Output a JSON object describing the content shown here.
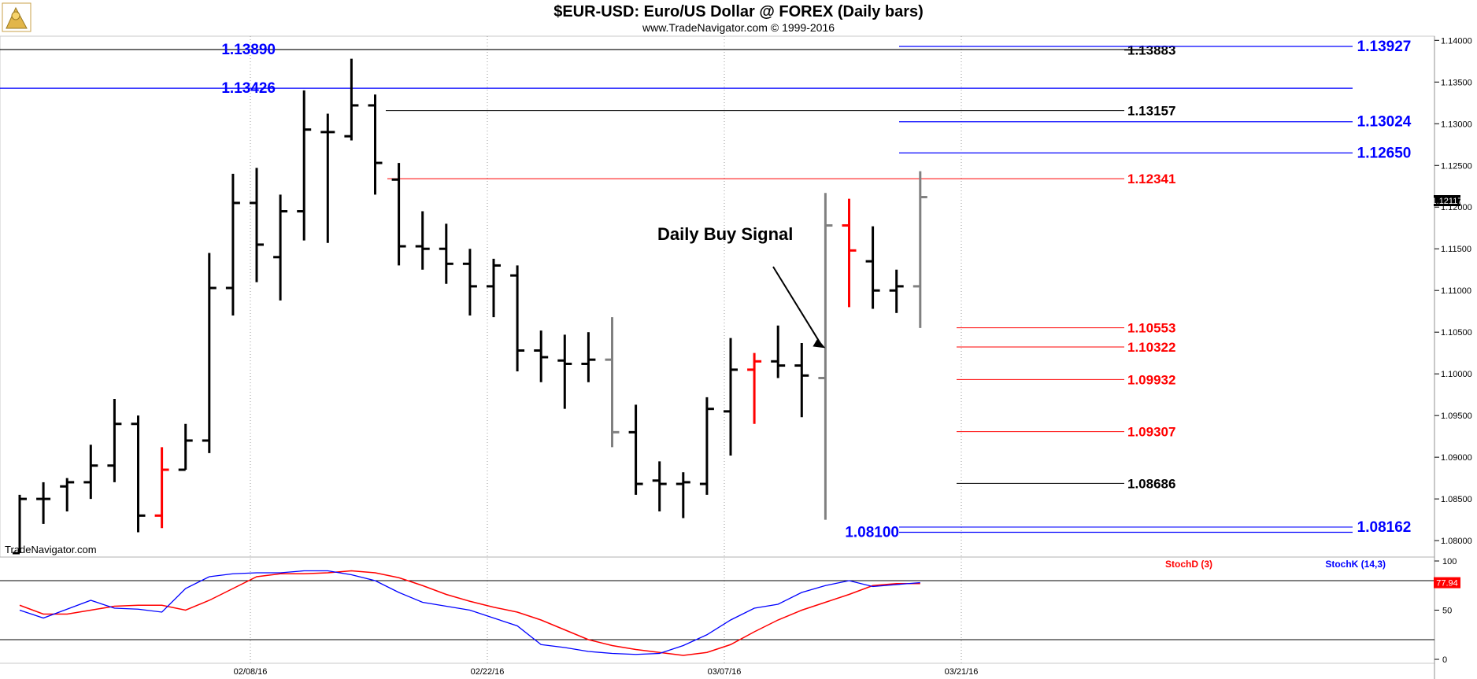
{
  "chart_data": {
    "type": "ohlc",
    "title": "$EUR-USD:  Euro/US Dollar @ FOREX  (Daily bars)",
    "copyright": "www.TradeNavigator.com © 1999-2016",
    "watermark": "TradeNavigator.com",
    "last_price": "1.12117",
    "y_axis": {
      "range": [
        1.0785,
        1.1405
      ],
      "ticks": [
        "1.14000",
        "1.13500",
        "1.13000",
        "1.12500",
        "1.12000",
        "1.11500",
        "1.11000",
        "1.10500",
        "1.10000",
        "1.09500",
        "1.09000",
        "1.08500",
        "1.08000"
      ]
    },
    "x_axis": {
      "labels": [
        {
          "label": "02/08/16",
          "bar": 10
        },
        {
          "label": "02/22/16",
          "bar": 20
        },
        {
          "label": "03/07/16",
          "bar": 30
        },
        {
          "label": "03/21/16",
          "bar": 40
        }
      ]
    },
    "bars": [
      {
        "o": 1.0785,
        "h": 1.0855,
        "l": 1.0785,
        "c": 1.085,
        "color": "#000000"
      },
      {
        "o": 1.085,
        "h": 1.087,
        "l": 1.082,
        "c": 1.085,
        "color": "#000000"
      },
      {
        "o": 1.0865,
        "h": 1.0875,
        "l": 1.0835,
        "c": 1.087,
        "color": "#000000"
      },
      {
        "o": 1.087,
        "h": 1.0915,
        "l": 1.085,
        "c": 1.089,
        "color": "#000000"
      },
      {
        "o": 1.089,
        "h": 1.097,
        "l": 1.087,
        "c": 1.094,
        "color": "#000000"
      },
      {
        "o": 1.094,
        "h": 1.095,
        "l": 1.081,
        "c": 1.083,
        "color": "#000000"
      },
      {
        "o": 1.083,
        "h": 1.0912,
        "l": 1.0815,
        "c": 1.0885,
        "color": "#ff0000"
      },
      {
        "o": 1.0885,
        "h": 1.094,
        "l": 1.0885,
        "c": 1.092,
        "color": "#000000"
      },
      {
        "o": 1.092,
        "h": 1.1145,
        "l": 1.0905,
        "c": 1.1103,
        "color": "#000000"
      },
      {
        "o": 1.1103,
        "h": 1.124,
        "l": 1.107,
        "c": 1.1205,
        "color": "#000000"
      },
      {
        "o": 1.1205,
        "h": 1.1247,
        "l": 1.111,
        "c": 1.1155,
        "color": "#000000"
      },
      {
        "o": 1.114,
        "h": 1.1215,
        "l": 1.1088,
        "c": 1.1195,
        "color": "#000000"
      },
      {
        "o": 1.1195,
        "h": 1.134,
        "l": 1.116,
        "c": 1.1293,
        "color": "#000000"
      },
      {
        "o": 1.129,
        "h": 1.1312,
        "l": 1.1157,
        "c": 1.129,
        "color": "#000000"
      },
      {
        "o": 1.1285,
        "h": 1.1378,
        "l": 1.128,
        "c": 1.1322,
        "color": "#000000"
      },
      {
        "o": 1.1322,
        "h": 1.1335,
        "l": 1.1215,
        "c": 1.1253,
        "color": "#000000"
      },
      {
        "o": 1.1233,
        "h": 1.1253,
        "l": 1.113,
        "c": 1.1153,
        "color": "#000000"
      },
      {
        "o": 1.1153,
        "h": 1.1195,
        "l": 1.1125,
        "c": 1.115,
        "color": "#000000"
      },
      {
        "o": 1.115,
        "h": 1.118,
        "l": 1.1108,
        "c": 1.1132,
        "color": "#000000"
      },
      {
        "o": 1.1132,
        "h": 1.115,
        "l": 1.107,
        "c": 1.1105,
        "color": "#000000"
      },
      {
        "o": 1.1105,
        "h": 1.1138,
        "l": 1.1068,
        "c": 1.113,
        "color": "#000000"
      },
      {
        "o": 1.1118,
        "h": 1.113,
        "l": 1.1003,
        "c": 1.1028,
        "color": "#000000"
      },
      {
        "o": 1.1028,
        "h": 1.1052,
        "l": 1.099,
        "c": 1.102,
        "color": "#000000"
      },
      {
        "o": 1.1016,
        "h": 1.1047,
        "l": 1.0958,
        "c": 1.1012,
        "color": "#000000"
      },
      {
        "o": 1.1012,
        "h": 1.105,
        "l": 1.099,
        "c": 1.1017,
        "color": "#000000"
      },
      {
        "o": 1.1017,
        "h": 1.1068,
        "l": 1.0912,
        "c": 1.093,
        "color": "#808080"
      },
      {
        "o": 1.093,
        "h": 1.0963,
        "l": 1.0855,
        "c": 1.0868,
        "color": "#000000"
      },
      {
        "o": 1.0872,
        "h": 1.0895,
        "l": 1.0835,
        "c": 1.0868,
        "color": "#000000"
      },
      {
        "o": 1.0868,
        "h": 1.0882,
        "l": 1.0827,
        "c": 1.087,
        "color": "#000000"
      },
      {
        "o": 1.0868,
        "h": 1.0972,
        "l": 1.0855,
        "c": 1.0958,
        "color": "#000000"
      },
      {
        "o": 1.0955,
        "h": 1.1043,
        "l": 1.0902,
        "c": 1.1005,
        "color": "#000000"
      },
      {
        "o": 1.1005,
        "h": 1.1025,
        "l": 1.094,
        "c": 1.1015,
        "color": "#ff0000"
      },
      {
        "o": 1.1015,
        "h": 1.1058,
        "l": 1.0995,
        "c": 1.101,
        "color": "#000000"
      },
      {
        "o": 1.101,
        "h": 1.1037,
        "l": 1.0948,
        "c": 1.0998,
        "color": "#000000"
      },
      {
        "o": 1.0995,
        "h": 1.1217,
        "l": 1.0825,
        "c": 1.1178,
        "color": "#808080"
      },
      {
        "o": 1.1178,
        "h": 1.121,
        "l": 1.108,
        "c": 1.1148,
        "color": "#ff0000"
      },
      {
        "o": 1.1135,
        "h": 1.1177,
        "l": 1.1078,
        "c": 1.11,
        "color": "#000000"
      },
      {
        "o": 1.11,
        "h": 1.1125,
        "l": 1.1073,
        "c": 1.1105,
        "color": "#000000"
      },
      {
        "o": 1.1105,
        "h": 1.1243,
        "l": 1.1055,
        "c": 1.1212,
        "color": "#808080"
      }
    ],
    "levels": [
      {
        "label": "1.13890",
        "value": 1.1389,
        "color": "#0000ff",
        "label_side": "left",
        "line_color": "#000000"
      },
      {
        "label": "1.13426",
        "value": 1.13426,
        "color": "#0000ff",
        "label_side": "left",
        "line_color": "#0000ff"
      },
      {
        "label": "1.13883",
        "value": 1.13883,
        "color": "#000000",
        "label_side": "right"
      },
      {
        "label": "1.13927",
        "value": 1.13927,
        "color": "#0000ff",
        "label_side": "far"
      },
      {
        "label": "1.13157",
        "value": 1.13157,
        "color": "#000000",
        "label_side": "right"
      },
      {
        "label": "1.13024",
        "value": 1.13024,
        "color": "#0000ff",
        "label_side": "far"
      },
      {
        "label": "1.12650",
        "value": 1.1265,
        "color": "#0000ff",
        "label_side": "far"
      },
      {
        "label": "1.12341",
        "value": 1.12341,
        "color": "#ff0000",
        "label_side": "right"
      },
      {
        "label": "1.10553",
        "value": 1.10553,
        "color": "#ff0000",
        "label_side": "right"
      },
      {
        "label": "1.10322",
        "value": 1.10322,
        "color": "#ff0000",
        "label_side": "right"
      },
      {
        "label": "1.09932",
        "value": 1.09932,
        "color": "#ff0000",
        "label_side": "right"
      },
      {
        "label": "1.09307",
        "value": 1.09307,
        "color": "#ff0000",
        "label_side": "right"
      },
      {
        "label": "1.08686",
        "value": 1.08686,
        "color": "#000000",
        "label_side": "right"
      },
      {
        "label": "1.08100",
        "value": 1.081,
        "color": "#0000ff",
        "label_side": "mid"
      },
      {
        "label": "1.08162",
        "value": 1.08162,
        "color": "#0000ff",
        "label_side": "far"
      }
    ],
    "annotation": {
      "text": "Daily Buy Signal",
      "arrow_to_bar": 34,
      "arrow_to_value": 1.1031
    },
    "stochastic": {
      "y_ticks": [
        "100",
        "50",
        "0"
      ],
      "upper_level": 80,
      "lower_level": 20,
      "last_value": "77.94",
      "legend": [
        {
          "name": "StochD (3)",
          "color": "#ff0000"
        },
        {
          "name": "StochK (14,3)",
          "color": "#0000ff"
        }
      ],
      "stochD": [
        55,
        46,
        46,
        50,
        54,
        55,
        55,
        50,
        60,
        72,
        84,
        87,
        87,
        88,
        90,
        88,
        83,
        75,
        66,
        59,
        53,
        48,
        40,
        30,
        20,
        14,
        10,
        7,
        4,
        7,
        15,
        28,
        40,
        50,
        58,
        66,
        75,
        77,
        77
      ],
      "stochK": [
        50,
        42,
        51,
        60,
        52,
        51,
        48,
        72,
        84,
        87,
        88,
        88,
        90,
        90,
        86,
        80,
        68,
        58,
        54,
        50,
        42,
        34,
        15,
        12,
        8,
        6,
        5,
        6,
        14,
        25,
        40,
        52,
        56,
        68,
        75,
        80,
        74,
        76,
        78
      ]
    }
  }
}
